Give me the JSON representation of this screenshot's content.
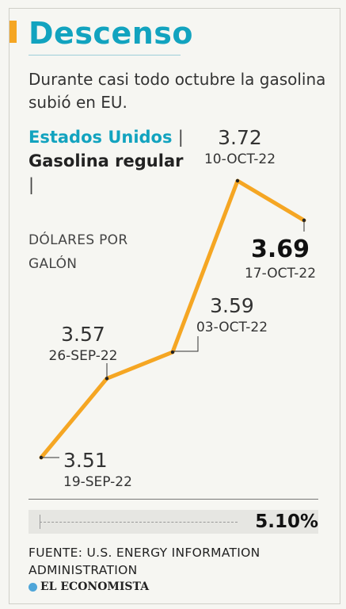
{
  "header": {
    "title": "Descenso",
    "subtitle": "Durante casi todo octubre la gasolina subió en EU."
  },
  "label": {
    "country": "Estados Unidos",
    "product": "Gasolina regular",
    "separator": "|",
    "units": "DÓLARES POR GALÓN"
  },
  "chart_data": {
    "type": "line",
    "x": [
      "19-SEP-22",
      "26-SEP-22",
      "03-OCT-22",
      "10-OCT-22",
      "17-OCT-22"
    ],
    "values": [
      3.51,
      3.57,
      3.59,
      3.72,
      3.69
    ],
    "value_labels": [
      "3.51",
      "3.57",
      "3.59",
      "3.72",
      "3.69"
    ],
    "highlight_index": 4,
    "ylim": [
      3.51,
      3.72
    ],
    "grid": false,
    "line_color": "#f5a623"
  },
  "footer": {
    "change": "5.10%",
    "source": "FUENTE: U.S. ENERGY INFORMATION ADMINISTRATION",
    "logo": "EL ECONOMISTA"
  },
  "colors": {
    "accent": "#12a3bf",
    "line": "#f5a623",
    "background": "#f6f6f2"
  }
}
